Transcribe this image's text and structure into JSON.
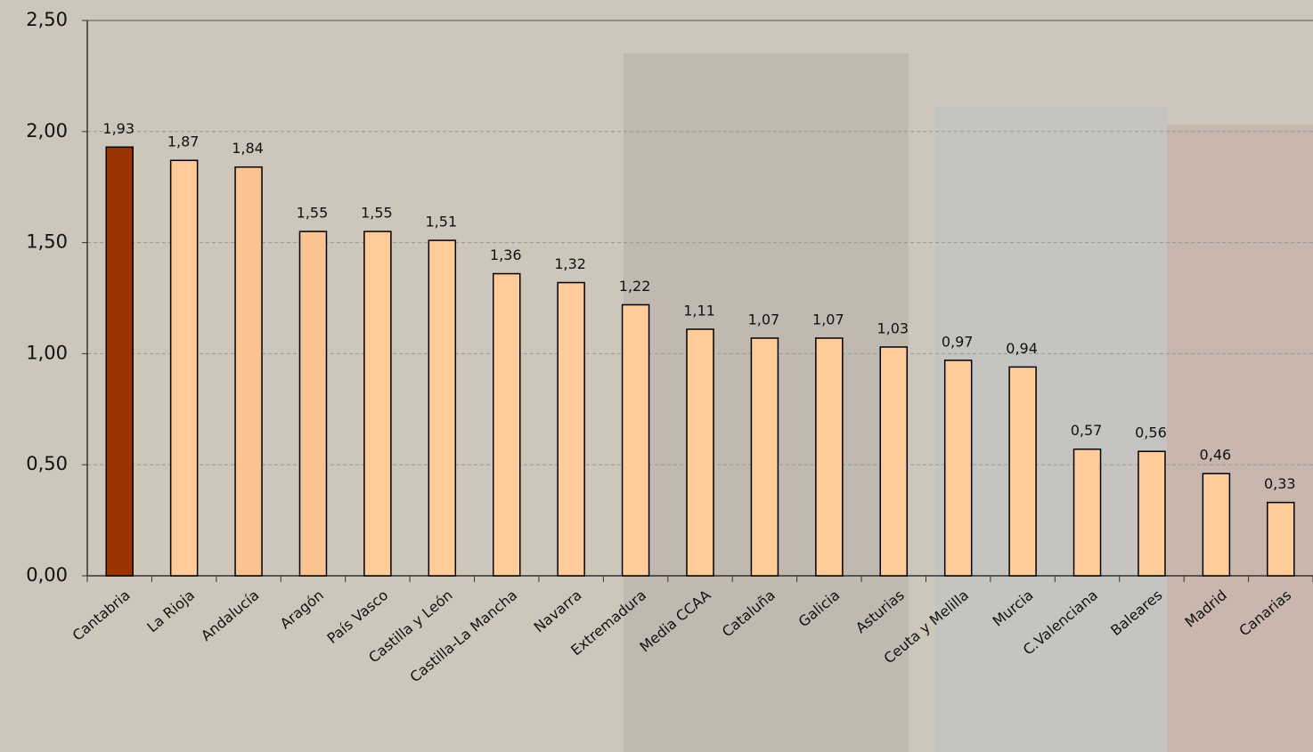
{
  "chart_data": {
    "type": "bar",
    "categories": [
      "Cantabria",
      "La Rioja",
      "Andalucía",
      "Aragón",
      "País Vasco",
      "Castilla y León",
      "Castilla-La Mancha",
      "Navarra",
      "Extremadura",
      "Media CCAA",
      "Cataluña",
      "Galicia",
      "Asturias",
      "Ceuta y Melilla",
      "Murcia",
      "C.Valenciana",
      "Baleares",
      "Madrid",
      "Canarias"
    ],
    "values": [
      1.93,
      1.87,
      1.84,
      1.55,
      1.55,
      1.51,
      1.36,
      1.32,
      1.22,
      1.11,
      1.07,
      1.07,
      1.03,
      0.97,
      0.94,
      0.57,
      0.56,
      0.46,
      0.33
    ],
    "value_labels": [
      "1,93",
      "1,87",
      "1,84",
      "1,55",
      "1,55",
      "1,51",
      "1,36",
      "1,32",
      "1,22",
      "1,11",
      "1,07",
      "1,07",
      "1,03",
      "0,97",
      "0,94",
      "0,57",
      "0,56",
      "0,46",
      "0,33"
    ],
    "colors": [
      "#993300",
      "#ffcc99",
      "#fbc38f",
      "#fbc38f",
      "#ffcc99",
      "#ffcc99",
      "#ffcc99",
      "#ffcc99",
      "#ffcc99",
      "#ffcc99",
      "#ffcc99",
      "#ffcc99",
      "#ffcc99",
      "#ffcc99",
      "#ffcc99",
      "#ffcc99",
      "#ffcc99",
      "#ffcc99",
      "#ffcc99"
    ],
    "ylim": [
      0,
      2.5
    ],
    "yticks": [
      {
        "value": 0,
        "label": "0,00"
      },
      {
        "value": 0.5,
        "label": "0,50"
      },
      {
        "value": 1,
        "label": "1,00"
      },
      {
        "value": 1.5,
        "label": "1,50"
      },
      {
        "value": 2,
        "label": "2,00"
      },
      {
        "value": 2.5,
        "label": "2,50"
      }
    ],
    "grid": true
  }
}
